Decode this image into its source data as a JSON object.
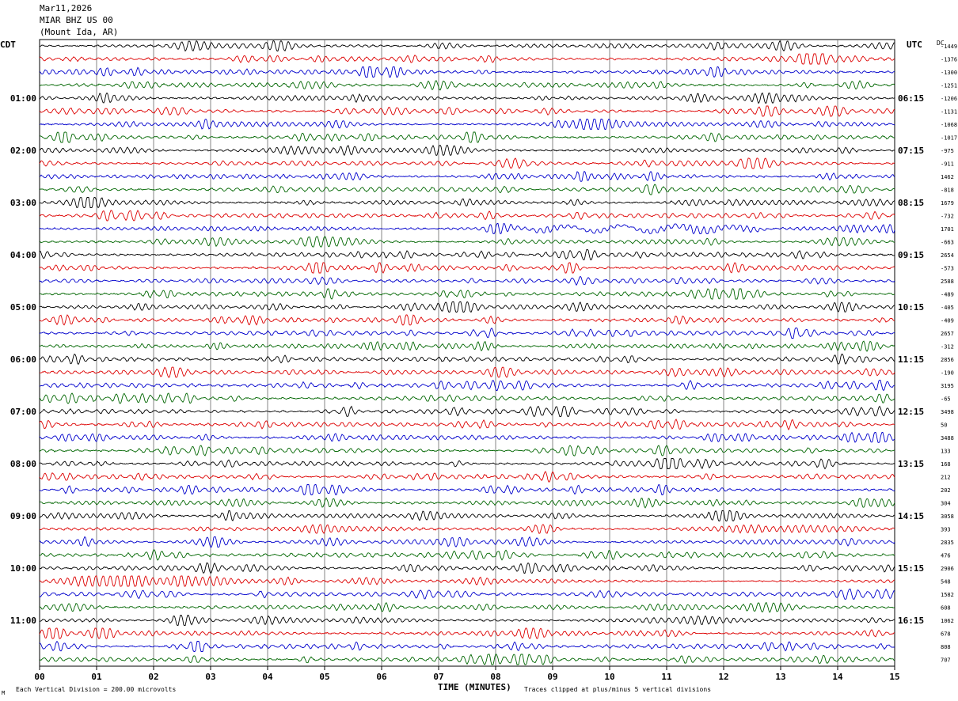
{
  "header": {
    "date": "Mar11,2026",
    "station": "MIAR BHZ US 00",
    "location": "(Mount Ida, AR)"
  },
  "timezones": {
    "left": "CDT",
    "right": "UTC",
    "right_extra": "DC"
  },
  "footer": {
    "x_title": "TIME (MINUTES)",
    "scale_note": "Each Vertical Division =  200.00 microvolts",
    "clip_note": "Traces clipped at plus/minus 5 vertical divisions",
    "corner": "M"
  },
  "colors": {
    "trace_cycle": [
      "#000000",
      "#dd0000",
      "#0000cc",
      "#006600"
    ],
    "grid": "#666666",
    "background": "#ffffff"
  },
  "chart_data": {
    "type": "line",
    "subtype": "helicorder",
    "x": {
      "label": "TIME (MINUTES)",
      "ticks": [
        "00",
        "01",
        "02",
        "03",
        "04",
        "05",
        "06",
        "07",
        "08",
        "09",
        "10",
        "11",
        "12",
        "13",
        "14",
        "15"
      ],
      "range": [
        0,
        15
      ]
    },
    "rows": 48,
    "minutes_per_row": 15,
    "left_hour_labels": [
      {
        "row": 4,
        "label": "01:00"
      },
      {
        "row": 8,
        "label": "02:00"
      },
      {
        "row": 12,
        "label": "03:00"
      },
      {
        "row": 16,
        "label": "04:00"
      },
      {
        "row": 20,
        "label": "05:00"
      },
      {
        "row": 24,
        "label": "06:00"
      },
      {
        "row": 28,
        "label": "07:00"
      },
      {
        "row": 32,
        "label": "08:00"
      },
      {
        "row": 36,
        "label": "09:00"
      },
      {
        "row": 40,
        "label": "10:00"
      },
      {
        "row": 44,
        "label": "11:00"
      }
    ],
    "right_hour_labels": [
      {
        "row": 4,
        "label": "06:15"
      },
      {
        "row": 8,
        "label": "07:15"
      },
      {
        "row": 12,
        "label": "08:15"
      },
      {
        "row": 16,
        "label": "09:15"
      },
      {
        "row": 20,
        "label": "10:15"
      },
      {
        "row": 24,
        "label": "11:15"
      },
      {
        "row": 28,
        "label": "12:15"
      },
      {
        "row": 32,
        "label": "13:15"
      },
      {
        "row": 36,
        "label": "14:15"
      },
      {
        "row": 40,
        "label": "15:15"
      },
      {
        "row": 44,
        "label": "16:15"
      }
    ],
    "dc_offsets": [
      "-1449",
      "-1376",
      "-1300",
      "-1251",
      "-1206",
      "-1131",
      "-1068",
      "-1017",
      "-975",
      "-911",
      "1462",
      "-818",
      "1679",
      "-732",
      "1701",
      "-663",
      "2654",
      "-573",
      "2588",
      "-489",
      "-405",
      "-409",
      "2657",
      "-312",
      "2856",
      "-190",
      "3195",
      "-65",
      "3498",
      "50",
      "3488",
      "133",
      "168",
      "212",
      "202",
      "304",
      "3058",
      "393",
      "2835",
      "476",
      "2906",
      "548",
      "1582",
      "608",
      "1062",
      "678",
      "808",
      "707"
    ],
    "vertical_division_microvolts": 200.0,
    "clip_divisions": 5
  }
}
